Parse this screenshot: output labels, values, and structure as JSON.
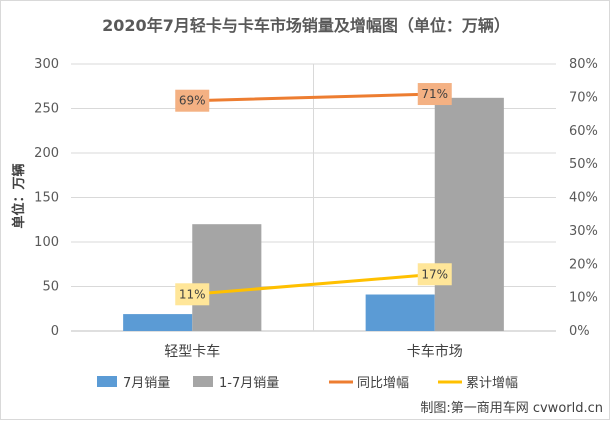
{
  "chart_data": {
    "type": "bar",
    "title": "2020年7月轻卡与卡车市场销量及增幅图（单位：万辆）",
    "ylabel": "单位：万辆",
    "categories": [
      "轻型卡车",
      "卡车市场"
    ],
    "ylim": [
      0,
      300
    ],
    "yticks": [
      "0",
      "50",
      "100",
      "150",
      "200",
      "250",
      "300"
    ],
    "y2lim": [
      0,
      80
    ],
    "y2ticks": [
      "0%",
      "10%",
      "20%",
      "30%",
      "40%",
      "50%",
      "60%",
      "70%",
      "80%"
    ],
    "grid": true,
    "series": [
      {
        "name": "7月销量",
        "type": "bar",
        "axis": "left",
        "color": "#5b9bd5",
        "values": [
          19,
          41
        ]
      },
      {
        "name": "1-7月销量",
        "type": "bar",
        "axis": "left",
        "color": "#a5a5a5",
        "values": [
          120,
          262
        ]
      },
      {
        "name": "同比增幅",
        "type": "line",
        "axis": "right",
        "color": "#ed7d31",
        "label_bg": "#f4b183",
        "values": [
          69,
          71
        ],
        "labels": [
          "69%",
          "71%"
        ]
      },
      {
        "name": "累计增幅",
        "type": "line",
        "axis": "right",
        "color": "#ffc000",
        "label_bg": "#ffe699",
        "values": [
          11,
          17
        ],
        "labels": [
          "11%",
          "17%"
        ]
      }
    ],
    "legend_position": "bottom"
  },
  "credit": "制图:第一商用车网 cvworld.cn"
}
